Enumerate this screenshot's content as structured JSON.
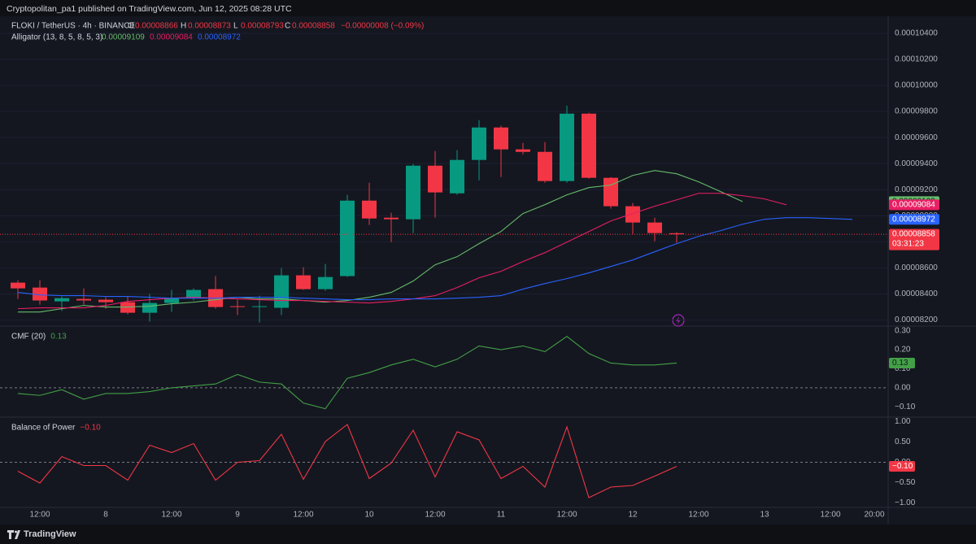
{
  "header": {
    "text": "Cryptopolitan_pa1 published on TradingView.com, Jun 12, 2025 08:28 UTC"
  },
  "footer": {
    "brand": "TradingView"
  },
  "chart_data": [
    {
      "type": "candlestick",
      "title": "FLOKI / TetherUS · 4h · BINANCE",
      "ohlc_labels": [
        "O",
        "H",
        "L",
        "C"
      ],
      "change_label": "−0.00000008 (−0.09%)",
      "countdown": "03:31:23",
      "up_color": "#089981",
      "down_color": "#f23645",
      "x": [
        0,
        1,
        2,
        3,
        4,
        5,
        6,
        7,
        8,
        9,
        10,
        11,
        12,
        13,
        14,
        15,
        16,
        17,
        18,
        19,
        20,
        21,
        22,
        23,
        24,
        25,
        26,
        27,
        28,
        29,
        30
      ],
      "open": [
        8.487e-05,
        8.449e-05,
        8.343e-05,
        8.362e-05,
        8.356e-05,
        8.337e-05,
        8.256e-05,
        8.331e-05,
        8.368e-05,
        8.437e-05,
        8.306e-05,
        8.3e-05,
        8.294e-05,
        8.543e-05,
        8.437e-05,
        8.537e-05,
        9.116e-05,
        8.985e-05,
        8.973e-05,
        9.384e-05,
        9.172e-05,
        9.428e-05,
        9.677e-05,
        9.509e-05,
        9.49e-05,
        9.266e-05,
        9.783e-05,
        9.291e-05,
        9.073e-05,
        8.948e-05,
        8.866e-05
      ],
      "high": [
        8.505e-05,
        8.505e-05,
        8.381e-05,
        8.443e-05,
        8.375e-05,
        8.381e-05,
        8.4e-05,
        8.431e-05,
        8.443e-05,
        8.537e-05,
        8.356e-05,
        8.387e-05,
        8.599e-05,
        8.605e-05,
        8.63e-05,
        9.16e-05,
        9.253e-05,
        9.023e-05,
        9.397e-05,
        9.496e-05,
        9.503e-05,
        9.733e-05,
        9.69e-05,
        9.559e-05,
        9.565e-05,
        9.845e-05,
        9.789e-05,
        9.297e-05,
        9.098e-05,
        8.985e-05,
        8.873e-05
      ],
      "low": [
        8.362e-05,
        8.318e-05,
        8.269e-05,
        8.318e-05,
        8.287e-05,
        8.244e-05,
        8.188e-05,
        8.262e-05,
        8.35e-05,
        8.287e-05,
        8.238e-05,
        8.181e-05,
        8.238e-05,
        8.431e-05,
        8.424e-05,
        8.53e-05,
        8.929e-05,
        8.798e-05,
        8.867e-05,
        8.985e-05,
        9.16e-05,
        9.272e-05,
        9.297e-05,
        9.471e-05,
        9.253e-05,
        9.253e-05,
        9.284e-05,
        9.054e-05,
        8.861e-05,
        8.805e-05,
        8.793e-05
      ],
      "close": [
        8.443e-05,
        8.35e-05,
        8.368e-05,
        8.35e-05,
        8.337e-05,
        8.256e-05,
        8.331e-05,
        8.368e-05,
        8.431e-05,
        8.3e-05,
        8.3e-05,
        8.306e-05,
        8.543e-05,
        8.437e-05,
        8.53e-05,
        9.116e-05,
        8.979e-05,
        8.973e-05,
        9.384e-05,
        9.179e-05,
        9.428e-05,
        9.677e-05,
        9.509e-05,
        9.49e-05,
        9.266e-05,
        9.783e-05,
        9.291e-05,
        9.073e-05,
        8.948e-05,
        8.867e-05,
        8.858e-05
      ],
      "indicator_label": "Alligator (13, 8, 5, 8, 5, 3)",
      "series": [
        {
          "color": "#66bb6a",
          "x": [
            0,
            1,
            2,
            3,
            4,
            5,
            6,
            7,
            8,
            9,
            10,
            11,
            12,
            13,
            14,
            15,
            16,
            17,
            18,
            19,
            20,
            21,
            22,
            23,
            24,
            25,
            26,
            27,
            28,
            29,
            30,
            31,
            32,
            33
          ],
          "values": [
            8.262e-05,
            8.262e-05,
            8.287e-05,
            8.312e-05,
            8.3e-05,
            8.3e-05,
            8.306e-05,
            8.325e-05,
            8.337e-05,
            8.356e-05,
            8.375e-05,
            8.362e-05,
            8.362e-05,
            8.35e-05,
            8.337e-05,
            8.35e-05,
            8.375e-05,
            8.412e-05,
            8.499e-05,
            8.624e-05,
            8.686e-05,
            8.786e-05,
            8.879e-05,
            9.017e-05,
            9.085e-05,
            9.16e-05,
            9.216e-05,
            9.235e-05,
            9.309e-05,
            9.347e-05,
            9.322e-05,
            9.26e-05,
            9.185e-05,
            9.109e-05
          ]
        },
        {
          "color": "#e91e63",
          "x": [
            0,
            1,
            2,
            3,
            4,
            5,
            6,
            7,
            8,
            9,
            10,
            11,
            12,
            13,
            14,
            15,
            16,
            17,
            18,
            19,
            20,
            21,
            22,
            23,
            24,
            25,
            26,
            27,
            28,
            29,
            30,
            31,
            32,
            33,
            34,
            35
          ],
          "values": [
            8.287e-05,
            8.294e-05,
            8.294e-05,
            8.294e-05,
            8.312e-05,
            8.343e-05,
            8.356e-05,
            8.368e-05,
            8.375e-05,
            8.368e-05,
            8.362e-05,
            8.356e-05,
            8.35e-05,
            8.35e-05,
            8.343e-05,
            8.337e-05,
            8.331e-05,
            8.343e-05,
            8.362e-05,
            8.387e-05,
            8.449e-05,
            8.524e-05,
            8.574e-05,
            8.649e-05,
            8.717e-05,
            8.798e-05,
            8.879e-05,
            8.96e-05,
            9.017e-05,
            9.073e-05,
            9.122e-05,
            9.172e-05,
            9.172e-05,
            9.154e-05,
            9.129e-05,
            9.084e-05
          ]
        },
        {
          "color": "#2962ff",
          "x": [
            0,
            1,
            2,
            3,
            4,
            5,
            6,
            7,
            8,
            9,
            10,
            11,
            12,
            13,
            14,
            15,
            16,
            17,
            18,
            19,
            20,
            21,
            22,
            23,
            24,
            25,
            26,
            27,
            28,
            29,
            30,
            31,
            32,
            33,
            34,
            35,
            36,
            37,
            38
          ],
          "values": [
            8.412e-05,
            8.393e-05,
            8.387e-05,
            8.387e-05,
            8.381e-05,
            8.381e-05,
            8.375e-05,
            8.368e-05,
            8.368e-05,
            8.368e-05,
            8.375e-05,
            8.375e-05,
            8.375e-05,
            8.368e-05,
            8.362e-05,
            8.356e-05,
            8.356e-05,
            8.362e-05,
            8.362e-05,
            8.362e-05,
            8.368e-05,
            8.375e-05,
            8.387e-05,
            8.437e-05,
            8.48e-05,
            8.518e-05,
            8.562e-05,
            8.611e-05,
            8.661e-05,
            8.724e-05,
            8.786e-05,
            8.842e-05,
            8.886e-05,
            8.935e-05,
            8.973e-05,
            8.985e-05,
            8.985e-05,
            8.979e-05,
            8.972e-05
          ]
        }
      ],
      "ylim": [
        8.16e-05,
        0.0001053
      ],
      "yticks": [
        {
          "value": 8.2e-05,
          "label": "0.00008200"
        },
        {
          "value": 8.4e-05,
          "label": "0.00008400"
        },
        {
          "value": 8.6e-05,
          "label": "0.00008600"
        },
        {
          "value": 8.8e-05,
          "label": "0.00008800"
        },
        {
          "value": 9e-05,
          "label": "0.00009000"
        },
        {
          "value": 9.2e-05,
          "label": "0.00009200"
        },
        {
          "value": 9.4e-05,
          "label": "0.00009400"
        },
        {
          "value": 9.6e-05,
          "label": "0.00009600"
        },
        {
          "value": 9.8e-05,
          "label": "0.00009800"
        },
        {
          "value": 0.0001,
          "label": "0.00010000"
        },
        {
          "value": 0.000102,
          "label": "0.00010200"
        },
        {
          "value": 0.000104,
          "label": "0.00010400"
        }
      ],
      "xticks": [
        {
          "value": 1,
          "label": "12:00"
        },
        {
          "value": 4,
          "label": "8"
        },
        {
          "value": 7,
          "label": "12:00"
        },
        {
          "value": 10,
          "label": "9"
        },
        {
          "value": 13,
          "label": "12:00"
        },
        {
          "value": 16,
          "label": "10"
        },
        {
          "value": 19,
          "label": "12:00"
        },
        {
          "value": 22,
          "label": "11"
        },
        {
          "value": 25,
          "label": "12:00"
        },
        {
          "value": 28,
          "label": "12"
        },
        {
          "value": 31,
          "label": "12:00"
        },
        {
          "value": 34,
          "label": "13"
        },
        {
          "value": 37,
          "label": "12:00"
        },
        {
          "value": 39,
          "label": "20:00"
        }
      ],
      "grid": true
    },
    {
      "type": "line",
      "title": "CMF (20)",
      "color": "#43a047",
      "x": [
        0,
        1,
        2,
        3,
        4,
        5,
        6,
        7,
        8,
        9,
        10,
        11,
        12,
        13,
        14,
        15,
        16,
        17,
        18,
        19,
        20,
        21,
        22,
        23,
        24,
        25,
        26,
        27,
        28,
        29,
        30
      ],
      "values": [
        -0.03,
        -0.04,
        -0.01,
        -0.06,
        -0.03,
        -0.03,
        -0.02,
        0.0,
        0.01,
        0.02,
        0.07,
        0.03,
        0.02,
        -0.08,
        -0.11,
        0.05,
        0.08,
        0.12,
        0.15,
        0.11,
        0.15,
        0.22,
        0.2,
        0.22,
        0.19,
        0.27,
        0.18,
        0.13,
        0.12,
        0.12,
        0.13
      ],
      "ylim": [
        -0.15,
        0.32
      ],
      "yticks": [
        {
          "value": -0.1,
          "label": "−0.10"
        },
        {
          "value": 0,
          "label": "0.00"
        },
        {
          "value": 0.1,
          "label": "0.10"
        },
        {
          "value": 0.2,
          "label": "0.20"
        },
        {
          "value": 0.3,
          "label": "0.30"
        }
      ]
    },
    {
      "type": "line",
      "title": "Balance of Power",
      "color": "#f23645",
      "x": [
        0,
        1,
        2,
        3,
        4,
        5,
        6,
        7,
        8,
        9,
        10,
        11,
        12,
        13,
        14,
        15,
        16,
        17,
        18,
        19,
        20,
        21,
        22,
        23,
        24,
        25,
        26,
        27,
        28,
        29,
        30
      ],
      "values": [
        -0.22,
        -0.51,
        0.14,
        -0.08,
        -0.08,
        -0.44,
        0.42,
        0.24,
        0.46,
        -0.44,
        0.0,
        0.04,
        0.69,
        -0.42,
        0.51,
        0.93,
        -0.4,
        -0.02,
        0.79,
        -0.36,
        0.75,
        0.55,
        -0.4,
        -0.1,
        -0.61,
        0.87,
        -0.87,
        -0.61,
        -0.57,
        -0.34,
        -0.1
      ],
      "value_labels": [
        null,
        null,
        null,
        null,
        null,
        null,
        null,
        null,
        null,
        null,
        null,
        null,
        null,
        null,
        null,
        null,
        null,
        null,
        null,
        null,
        null,
        null,
        null,
        null,
        null,
        null,
        null,
        null,
        null,
        null,
        "−0.10"
      ],
      "ylim": [
        -1.13,
        1.09
      ],
      "yticks": [
        {
          "value": -1,
          "label": "−1.00"
        },
        {
          "value": -0.5,
          "label": "−0.50"
        },
        {
          "value": 0,
          "label": "0.00"
        },
        {
          "value": 0.5,
          "label": "0.50"
        },
        {
          "value": 1,
          "label": "1.00"
        }
      ]
    }
  ]
}
